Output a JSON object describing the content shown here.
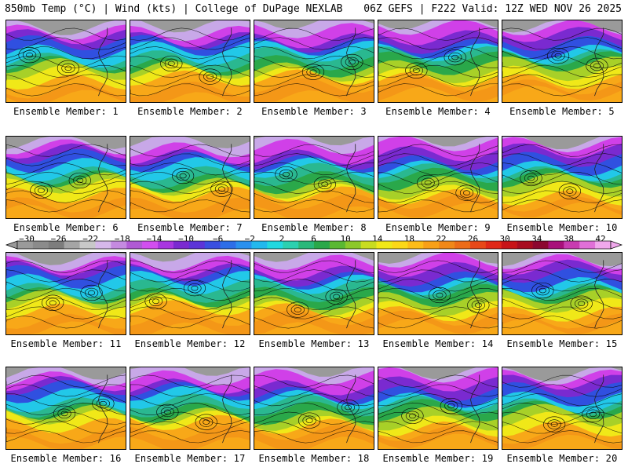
{
  "header": {
    "left": "850mb Temp (°C) | Wind (kts) | College of DuPage NEXLAB",
    "right": "06Z GEFS | F222 Valid: 12Z WED NOV 26 2025"
  },
  "colorbar": {
    "labels": [
      "−30",
      "−26",
      "−22",
      "−18",
      "−14",
      "−10",
      "−6",
      "−2",
      "2",
      "6",
      "10",
      "14",
      "18",
      "22",
      "26",
      "30",
      "34",
      "38",
      "42"
    ],
    "colors": [
      "#9a9a9a",
      "#8b8b8b",
      "#7d7d7d",
      "#a5a5a5",
      "#c8c8c8",
      "#d6b8ea",
      "#c48ae0",
      "#b05ad4",
      "#d24ef0",
      "#a836e0",
      "#7a2ad0",
      "#5c34d8",
      "#3a4fe0",
      "#2e6ee8",
      "#2a90ee",
      "#22b8ee",
      "#22d8e0",
      "#2cd0b0",
      "#2ab87a",
      "#2aa84a",
      "#5ab832",
      "#8cc82a",
      "#c8dc20",
      "#f0e818",
      "#fcd818",
      "#fcbc18",
      "#f8a018",
      "#f08818",
      "#ec6c18",
      "#e84818",
      "#e02818",
      "#c81418",
      "#a80c20",
      "#8c0830",
      "#a8107a",
      "#c83cb0",
      "#e070d8",
      "#f0a8ec"
    ]
  },
  "panels": [
    {
      "caption": "Ensemble Member: 1"
    },
    {
      "caption": "Ensemble Member: 2"
    },
    {
      "caption": "Ensemble Member: 3"
    },
    {
      "caption": "Ensemble Member: 4"
    },
    {
      "caption": "Ensemble Member: 5"
    },
    {
      "caption": "Ensemble Member: 6"
    },
    {
      "caption": "Ensemble Member: 7"
    },
    {
      "caption": "Ensemble Member: 8"
    },
    {
      "caption": "Ensemble Member: 9"
    },
    {
      "caption": "Ensemble Member: 10"
    },
    {
      "caption": "Ensemble Member: 11"
    },
    {
      "caption": "Ensemble Member: 12"
    },
    {
      "caption": "Ensemble Member: 13"
    },
    {
      "caption": "Ensemble Member: 14"
    },
    {
      "caption": "Ensemble Member: 15"
    },
    {
      "caption": "Ensemble Member: 16"
    },
    {
      "caption": "Ensemble Member: 17"
    },
    {
      "caption": "Ensemble Member: 18"
    },
    {
      "caption": "Ensemble Member: 19"
    },
    {
      "caption": "Ensemble Member: 20"
    }
  ],
  "map_colors": {
    "cold_gray": "#9a9a9a",
    "lavender": "#c8a8e8",
    "magenta": "#d040e8",
    "purple": "#7a2ad0",
    "blue": "#3050e0",
    "cyan": "#22c8e8",
    "teal": "#2ab890",
    "green": "#2aa84a",
    "yellowgreen": "#a8d028",
    "yellow": "#f0e818",
    "orange": "#f8a818",
    "deeporange": "#f08818"
  }
}
